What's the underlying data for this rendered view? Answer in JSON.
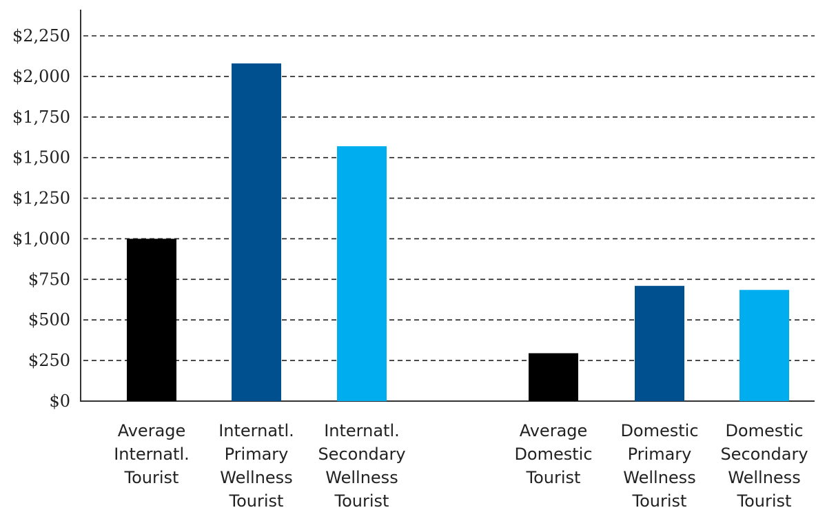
{
  "chart_data": {
    "type": "bar",
    "categories": [
      [
        "Average",
        "Internatl.",
        "Tourist"
      ],
      [
        "Internatl.",
        "Primary",
        "Wellness",
        "Tourist"
      ],
      [
        "Internatl.",
        "Secondary",
        "Wellness",
        "Tourist"
      ],
      [
        "Average",
        "Domestic",
        "Tourist"
      ],
      [
        "Domestic",
        "Primary",
        "Wellness",
        "Tourist"
      ],
      [
        "Domestic",
        "Secondary",
        "Wellness",
        "Tourist"
      ]
    ],
    "values": [
      1000,
      2080,
      1570,
      295,
      710,
      685
    ],
    "colors": [
      "#000000",
      "#00508f",
      "#00aeef",
      "#000000",
      "#00508f",
      "#00aeef"
    ],
    "yticks": [
      "$0",
      "$250",
      "$500",
      "$750",
      "$1,000",
      "$1,250",
      "$1,500",
      "$1,750",
      "$2,000",
      "$2,250"
    ],
    "ylim": [
      0,
      2250
    ],
    "grid": "dashed horizontal",
    "title": "",
    "xlabel": "",
    "ylabel": ""
  }
}
